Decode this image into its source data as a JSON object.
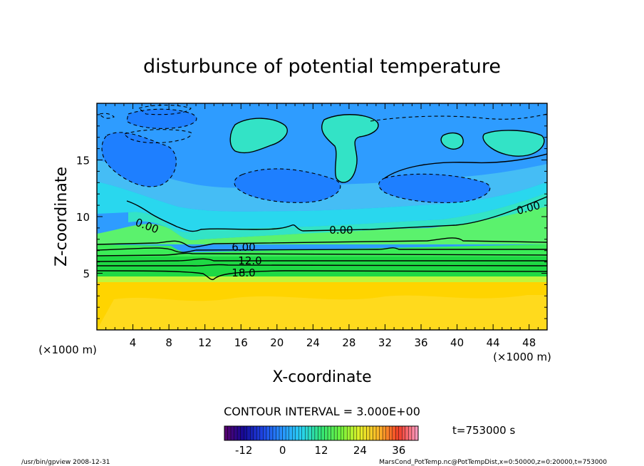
{
  "chart_data": {
    "type": "contour",
    "title": "disturbunce of potential temperature",
    "xlabel": "X-coordinate",
    "ylabel": "Z-coordinate",
    "x_unit_left": "(×1000 m)",
    "x_unit_right": "(×1000 m)",
    "xlim": [
      0,
      50
    ],
    "ylim": [
      0,
      20
    ],
    "x_ticks": [
      4,
      8,
      12,
      16,
      20,
      24,
      28,
      32,
      36,
      40,
      44,
      48
    ],
    "y_ticks": [
      5,
      10,
      15
    ],
    "contour_labels": [
      {
        "text": "0.00",
        "x": 27.1,
        "z": 8.6
      },
      {
        "text": "6.00",
        "x": 16.3,
        "z": 7.3
      },
      {
        "text": "12.0",
        "x": 17.0,
        "z": 6.1
      },
      {
        "text": "18.0",
        "x": 16.3,
        "z": 4.9
      },
      {
        "text": "0.00",
        "x": 46.6,
        "z": 10.7
      },
      {
        "text": "0.00",
        "x": 5.5,
        "z": 9.2
      }
    ],
    "contour_interval_text": "CONTOUR INTERVAL = 3.000E+00",
    "colorbar": {
      "ticks": [
        -12,
        0,
        12,
        24,
        36
      ],
      "min": -18,
      "max": 42
    },
    "time_label": "t=753000 s"
  },
  "footer": {
    "left": "/usr/bin/gpview   2008-12-31",
    "right": "MarsCond_PotTemp.nc@PotTempDist,x=0:50000,z=0:20000,t=753000"
  },
  "colors": {
    "deep_blue": "#1e7fff",
    "mid_blue": "#2e9cff",
    "light_blue": "#45bdf5",
    "cyan": "#29d7ee",
    "aqua": "#33e3c6",
    "green_light": "#5bf26d",
    "green_mid": "#3cec57",
    "green_dark": "#1fd944",
    "yellow_green": "#c0f53c",
    "gold": "#ffd400",
    "gold_light": "#ffe03a"
  }
}
